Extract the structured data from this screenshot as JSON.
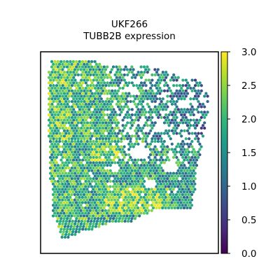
{
  "chart_data": {
    "type": "scatter",
    "title_lines": [
      "UKF266",
      "TUBB2B expression"
    ],
    "xlabel": "",
    "ylabel": "",
    "grid": false,
    "point_marker": "hexagon",
    "colormap": "viridis",
    "colorbar": {
      "range": [
        0.0,
        3.0
      ],
      "ticks": [
        0.0,
        0.5,
        1.0,
        1.5,
        2.0,
        2.5,
        3.0
      ],
      "tick_labels": [
        "0.0",
        "0.5",
        "1.0",
        "1.5",
        "2.0",
        "2.5",
        "3.0"
      ],
      "placement": "right"
    },
    "value_summary": {
      "typical_range": [
        1.0,
        2.0
      ],
      "high_region": "lower-center",
      "low_region": "upper-right"
    }
  },
  "colors": {
    "viridis_stops": [
      "#440154",
      "#482878",
      "#3e4989",
      "#31688e",
      "#26828e",
      "#1f9e89",
      "#35b779",
      "#6ece58",
      "#b5de2b",
      "#fde725"
    ],
    "frame": "#000000",
    "background": "#ffffff"
  }
}
